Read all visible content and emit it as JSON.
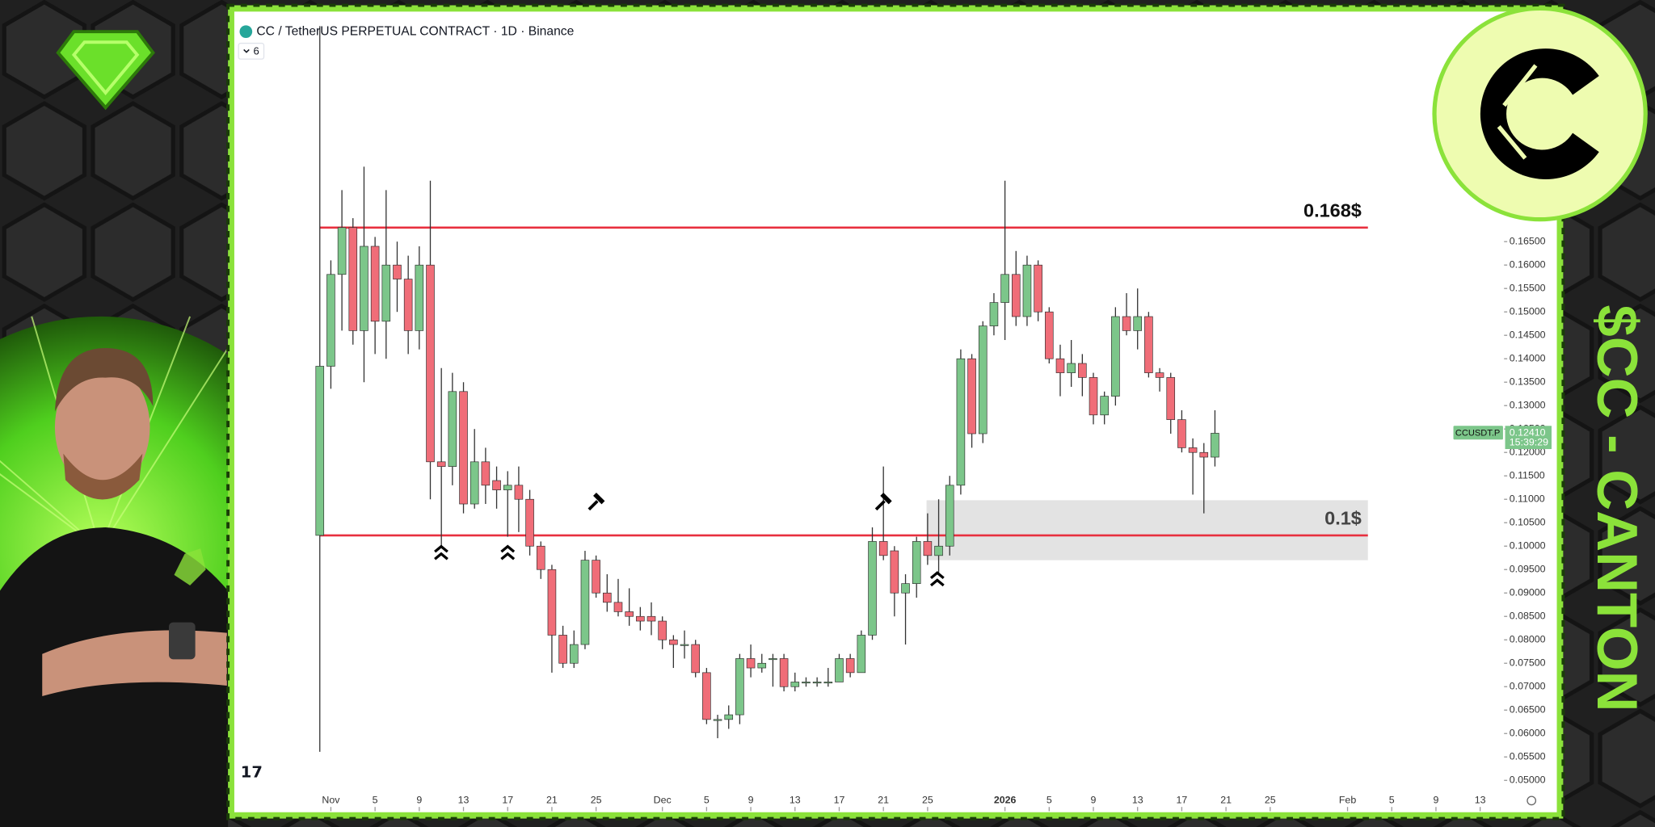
{
  "thumbnail": {
    "side_text": "$CC - CANTON"
  },
  "chart_data": {
    "type": "candlestick",
    "title": "CC / TetherUS PERPETUAL CONTRACT · 1D · Binance",
    "indicator_count": "6",
    "up_color": "#7cc68a",
    "down_color": "#f06d78",
    "categories": [
      "Oct 31",
      "Nov 1",
      "Nov 2",
      "Nov 3",
      "Nov 4",
      "Nov 5",
      "Nov 6",
      "Nov 7",
      "Nov 8",
      "Nov 9",
      "Nov 10",
      "Nov 11",
      "Nov 12",
      "Nov 13",
      "Nov 14",
      "Nov 15",
      "Nov 16",
      "Nov 17",
      "Nov 18",
      "Nov 19",
      "Nov 20",
      "Nov 21",
      "Nov 22",
      "Nov 23",
      "Nov 24",
      "Nov 25",
      "Nov 26",
      "Nov 27",
      "Nov 28",
      "Nov 29",
      "Nov 30",
      "Dec 1",
      "Dec 2",
      "Dec 3",
      "Dec 4",
      "Dec 5",
      "Dec 6",
      "Dec 7",
      "Dec 8",
      "Dec 9",
      "Dec 10",
      "Dec 11",
      "Dec 12",
      "Dec 13",
      "Dec 14",
      "Dec 15",
      "Dec 16",
      "Dec 17",
      "Dec 18",
      "Dec 19",
      "Dec 20",
      "Dec 21",
      "Dec 22",
      "Dec 23",
      "Dec 24",
      "Dec 25",
      "Dec 26",
      "Dec 27",
      "Dec 28",
      "Dec 29",
      "Dec 30",
      "Dec 31",
      "Jan 1",
      "Jan 2",
      "Jan 3",
      "Jan 4",
      "Jan 5",
      "Jan 6",
      "Jan 7",
      "Jan 8",
      "Jan 9",
      "Jan 10",
      "Jan 11",
      "Jan 12",
      "Jan 13",
      "Jan 14",
      "Jan 15",
      "Jan 16",
      "Jan 17",
      "Jan 18",
      "Jan 19",
      "Jan 20",
      "Jan 21",
      "Jan 22",
      "Jan 23",
      "Jan 24",
      "Jan 25",
      "Jan 26",
      "Jan 27",
      "Jan 28",
      "Jan 29",
      "Jan 30",
      "Jan 31",
      "Feb 1",
      "Feb 2",
      "Feb 3",
      "Feb 4",
      "Feb 5",
      "Feb 6",
      "Feb 7",
      "Feb 8",
      "Feb 9",
      "Feb 10",
      "Feb 11",
      "Feb 12",
      "Feb 13"
    ],
    "open": [
      0.1023,
      0.1384,
      0.158,
      0.168,
      0.146,
      0.164,
      0.148,
      0.16,
      0.157,
      0.146,
      0.16,
      0.118,
      0.117,
      0.133,
      0.109,
      0.118,
      0.114,
      0.112,
      0.113,
      0.11,
      0.1,
      0.095,
      0.081,
      0.075,
      0.079,
      0.097,
      0.09,
      0.088,
      0.086,
      0.085,
      0.085,
      0.084,
      0.08,
      0.079,
      0.079,
      0.073,
      0.063,
      0.063,
      0.064,
      0.076,
      0.074,
      0.076,
      0.076,
      0.07,
      0.071,
      0.071,
      0.071,
      0.071,
      0.076,
      0.073,
      0.081,
      0.101,
      0.099,
      0.09,
      0.092,
      0.101,
      0.098,
      0.1,
      0.113,
      0.14,
      0.124,
      0.147,
      0.152,
      0.158,
      0.149,
      0.16,
      0.15,
      0.14,
      0.137,
      0.139,
      0.136,
      0.128,
      0.132,
      0.149,
      0.146,
      0.149,
      0.137,
      0.136,
      0.127,
      0.121,
      0.12,
      0.119,
      null,
      null,
      null,
      null,
      null,
      null,
      null,
      null,
      null,
      null,
      null,
      null,
      null,
      null,
      null,
      null,
      null,
      null,
      null,
      null,
      null,
      null,
      null,
      null
    ],
    "high": [
      0.211,
      0.161,
      0.176,
      0.17,
      0.181,
      0.166,
      0.176,
      0.165,
      0.162,
      0.164,
      0.178,
      0.138,
      0.137,
      0.135,
      0.125,
      0.121,
      0.117,
      0.116,
      0.117,
      0.112,
      0.101,
      0.096,
      0.083,
      0.082,
      0.099,
      0.098,
      0.094,
      0.093,
      0.091,
      0.087,
      0.088,
      0.085,
      0.081,
      0.082,
      0.08,
      0.074,
      0.064,
      0.066,
      0.077,
      0.079,
      0.077,
      0.077,
      0.077,
      0.073,
      0.072,
      0.072,
      0.074,
      0.077,
      0.077,
      0.082,
      0.104,
      0.117,
      0.1,
      0.094,
      0.102,
      0.107,
      0.11,
      0.115,
      0.142,
      0.141,
      0.148,
      0.154,
      0.178,
      0.163,
      0.162,
      0.161,
      0.151,
      0.143,
      0.144,
      0.141,
      0.137,
      0.133,
      0.151,
      0.154,
      0.155,
      0.15,
      0.138,
      0.137,
      0.129,
      0.123,
      0.122,
      0.129,
      null,
      null,
      null,
      null,
      null,
      null,
      null,
      null,
      null,
      null,
      null,
      null,
      null,
      null,
      null,
      null,
      null,
      null,
      null,
      null,
      null,
      null,
      null,
      null
    ],
    "low": [
      0.0561,
      0.1336,
      0.146,
      0.143,
      0.135,
      0.141,
      0.14,
      0.15,
      0.141,
      0.142,
      0.11,
      0.1,
      0.113,
      0.107,
      0.108,
      0.109,
      0.108,
      0.102,
      0.103,
      0.098,
      0.093,
      0.073,
      0.074,
      0.074,
      0.078,
      0.089,
      0.086,
      0.085,
      0.083,
      0.082,
      0.081,
      0.078,
      0.074,
      0.076,
      0.072,
      0.062,
      0.059,
      0.061,
      0.062,
      0.072,
      0.073,
      0.07,
      0.069,
      0.069,
      0.07,
      0.07,
      0.07,
      0.071,
      0.072,
      0.073,
      0.08,
      0.097,
      0.085,
      0.079,
      0.089,
      0.096,
      0.094,
      0.098,
      0.111,
      0.121,
      0.122,
      0.145,
      0.144,
      0.147,
      0.147,
      0.148,
      0.139,
      0.132,
      0.134,
      0.132,
      0.126,
      0.126,
      0.13,
      0.145,
      0.142,
      0.136,
      0.133,
      0.124,
      0.12,
      0.111,
      0.107,
      0.117,
      null,
      null,
      null,
      null,
      null,
      null,
      null,
      null,
      null,
      null,
      null,
      null,
      null,
      null,
      null,
      null,
      null,
      null,
      null,
      null,
      null,
      null,
      null,
      null
    ],
    "close": [
      0.1384,
      0.158,
      0.168,
      0.146,
      0.164,
      0.148,
      0.16,
      0.157,
      0.146,
      0.16,
      0.118,
      0.117,
      0.133,
      0.109,
      0.118,
      0.113,
      0.112,
      0.113,
      0.11,
      0.1,
      0.095,
      0.081,
      0.075,
      0.079,
      0.097,
      0.09,
      0.088,
      0.086,
      0.085,
      0.084,
      0.084,
      0.08,
      0.079,
      0.079,
      0.073,
      0.063,
      0.063,
      0.064,
      0.076,
      0.074,
      0.075,
      0.076,
      0.07,
      0.071,
      0.071,
      0.071,
      0.071,
      0.076,
      0.073,
      0.081,
      0.101,
      0.098,
      0.09,
      0.092,
      0.101,
      0.098,
      0.1,
      0.113,
      0.14,
      0.124,
      0.147,
      0.152,
      0.158,
      0.149,
      0.16,
      0.15,
      0.14,
      0.137,
      0.139,
      0.136,
      0.128,
      0.132,
      0.149,
      0.146,
      0.149,
      0.137,
      0.136,
      0.127,
      0.121,
      0.12,
      0.119,
      0.1241,
      null,
      null,
      null,
      null,
      null,
      null,
      null,
      null,
      null,
      null,
      null,
      null,
      null,
      null,
      null,
      null,
      null,
      null,
      null,
      null,
      null,
      null,
      null,
      null
    ],
    "ylim": [
      0.0432,
      0.2141
    ],
    "yticks": [
      {
        "value": 0.05,
        "label": "0.05000"
      },
      {
        "value": 0.055,
        "label": "0.05500"
      },
      {
        "value": 0.06,
        "label": "0.06000"
      },
      {
        "value": 0.065,
        "label": "0.06500"
      },
      {
        "value": 0.07,
        "label": "0.07000"
      },
      {
        "value": 0.075,
        "label": "0.07500"
      },
      {
        "value": 0.08,
        "label": "0.08000"
      },
      {
        "value": 0.085,
        "label": "0.08500"
      },
      {
        "value": 0.09,
        "label": "0.09000"
      },
      {
        "value": 0.095,
        "label": "0.09500"
      },
      {
        "value": 0.1,
        "label": "0.10000"
      },
      {
        "value": 0.105,
        "label": "0.10500"
      },
      {
        "value": 0.11,
        "label": "0.11000"
      },
      {
        "value": 0.115,
        "label": "0.11500"
      },
      {
        "value": 0.12,
        "label": "0.12000"
      },
      {
        "value": 0.125,
        "label": "0.12500"
      },
      {
        "value": 0.13,
        "label": "0.13000"
      },
      {
        "value": 0.135,
        "label": "0.13500"
      },
      {
        "value": 0.14,
        "label": "0.14000"
      },
      {
        "value": 0.145,
        "label": "0.14500"
      },
      {
        "value": 0.15,
        "label": "0.15000"
      },
      {
        "value": 0.155,
        "label": "0.15500"
      },
      {
        "value": 0.16,
        "label": "0.16000"
      },
      {
        "value": 0.165,
        "label": "0.16500"
      }
    ],
    "xticks": [
      {
        "value": "Nov 1",
        "label": "Nov"
      },
      {
        "value": "Nov 5",
        "label": "5"
      },
      {
        "value": "Nov 9",
        "label": "9"
      },
      {
        "value": "Nov 13",
        "label": "13"
      },
      {
        "value": "Nov 17",
        "label": "17"
      },
      {
        "value": "Nov 21",
        "label": "21"
      },
      {
        "value": "Nov 25",
        "label": "25"
      },
      {
        "value": "Dec 1",
        "label": "Dec"
      },
      {
        "value": "Dec 5",
        "label": "5"
      },
      {
        "value": "Dec 9",
        "label": "9"
      },
      {
        "value": "Dec 13",
        "label": "13"
      },
      {
        "value": "Dec 17",
        "label": "17"
      },
      {
        "value": "Dec 21",
        "label": "21"
      },
      {
        "value": "Dec 25",
        "label": "25"
      },
      {
        "value": "Jan 1",
        "label": "2026"
      },
      {
        "value": "Jan 5",
        "label": "5"
      },
      {
        "value": "Jan 9",
        "label": "9"
      },
      {
        "value": "Jan 13",
        "label": "13"
      },
      {
        "value": "Jan 17",
        "label": "17"
      },
      {
        "value": "Jan 21",
        "label": "21"
      },
      {
        "value": "Jan 25",
        "label": "25"
      },
      {
        "value": "Feb 1",
        "label": "Feb"
      },
      {
        "value": "Feb 5",
        "label": "5"
      },
      {
        "value": "Feb 9",
        "label": "9"
      },
      {
        "value": "Feb 13",
        "label": "13"
      }
    ],
    "levels": [
      {
        "value": 0.168,
        "label": "0.168$",
        "color": "#e8303f"
      },
      {
        "value": 0.1023,
        "label": "0.1$",
        "color": "#e8303f"
      }
    ],
    "zone": {
      "from": 0.097,
      "to": 0.1098,
      "start": "Dec 25"
    },
    "price_tag": {
      "symbol": "CCUSDT.P",
      "value": 0.1241,
      "label": "0.12410",
      "countdown": "15:39:29"
    }
  }
}
